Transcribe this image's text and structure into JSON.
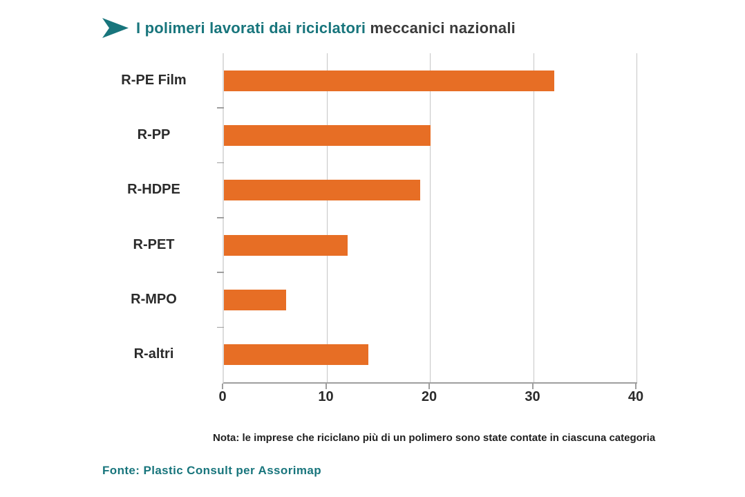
{
  "header": {
    "title_highlight": "I polimeri lavorati dai riciclatori",
    "title_rest": " meccanici nazionali"
  },
  "chart_data": {
    "type": "bar",
    "orientation": "horizontal",
    "title": "I polimeri lavorati dai riciclatori meccanici nazionali",
    "categories": [
      "R-PE Film",
      "R-PP",
      "R-HDPE",
      "R-PET",
      "R-MPO",
      "R-altri"
    ],
    "values": [
      32,
      20,
      19,
      12,
      6,
      14
    ],
    "x_ticks": [
      0,
      10,
      20,
      30,
      40
    ],
    "xlim": [
      0,
      40
    ],
    "xlabel": "",
    "ylabel": "",
    "grid": "vertical-gridlines-on",
    "legend": "none",
    "bar_color": "#E76E25"
  },
  "note": "Nota: le imprese che riciclano più di un polimero sono state contate in ciascuna categoria",
  "source": "Fonte: Plastic Consult per Assorimap",
  "colors": {
    "accent_teal": "#18757C",
    "bar_orange": "#E76E25",
    "title_dark": "#3A3A3A",
    "axis_gray": "#9E9E9E",
    "gridline_gray": "#C6C6C6"
  }
}
